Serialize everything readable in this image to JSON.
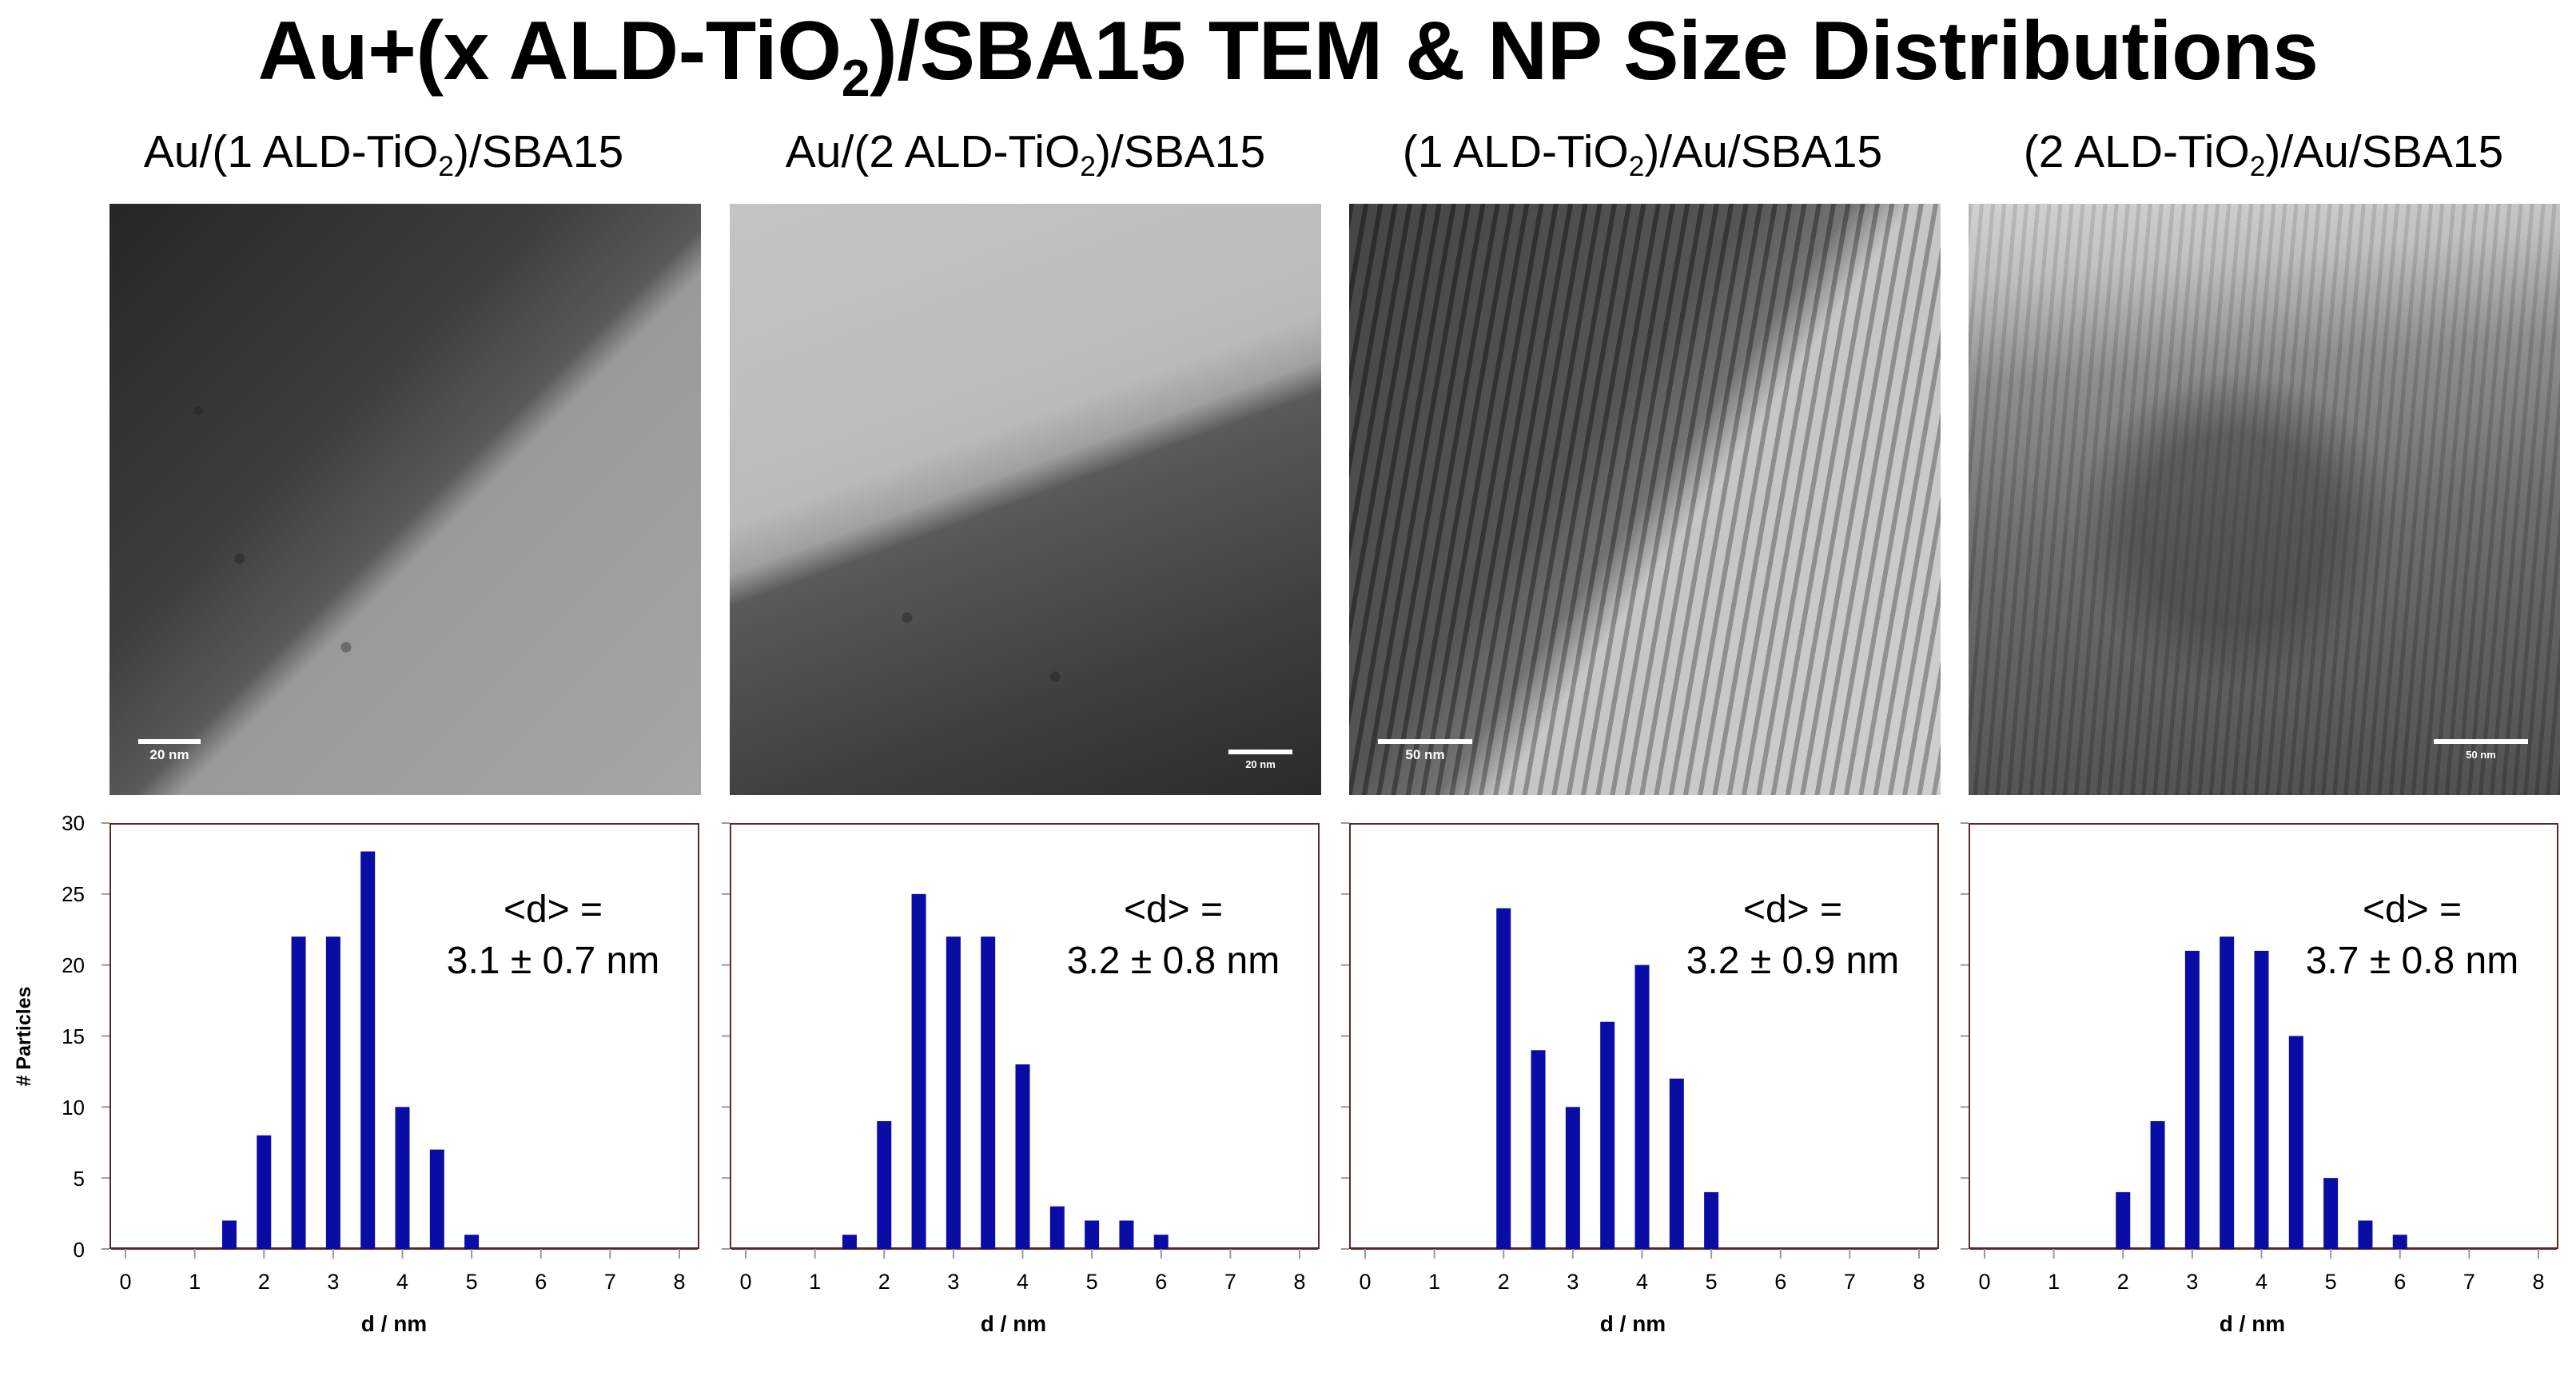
{
  "title": {
    "prefix": "Au+(x ALD-TiO",
    "sub": "2",
    "suffix": ")/SBA15 TEM & NP Size Distributions"
  },
  "panels": [
    {
      "title_pre": "Au/(1 ALD-TiO",
      "title_sub": "2",
      "title_post": ")/SBA15",
      "scale_label": "20 nm",
      "avg_line1": "<d> =",
      "avg_line2": "3.1 ± 0.7 nm"
    },
    {
      "title_pre": "Au/(2 ALD-TiO",
      "title_sub": "2",
      "title_post": ")/SBA15",
      "scale_label": "20 nm",
      "avg_line1": "<d> =",
      "avg_line2": "3.2 ± 0.8 nm"
    },
    {
      "title_pre": "(1 ALD-TiO",
      "title_sub": "2",
      "title_post": ")/Au/SBA15",
      "scale_label": "50 nm",
      "avg_line1": "<d> =",
      "avg_line2": "3.2 ± 0.9 nm"
    },
    {
      "title_pre": "(2 ALD-TiO",
      "title_sub": "2",
      "title_post": ")/Au/SBA15",
      "scale_label": "50 nm",
      "avg_line1": "<d> =",
      "avg_line2": "3.7 ± 0.8 nm"
    }
  ],
  "colors": {
    "bar": "#0a0ca6",
    "frame": "#5a2a22",
    "axis": "#999999"
  },
  "chart_data": [
    {
      "type": "bar",
      "title": "Au/(1 ALD-TiO2)/SBA15",
      "xlabel": "d / nm",
      "ylabel": "# Particles",
      "xlim": [
        0,
        8
      ],
      "ylim": [
        0,
        30
      ],
      "xticks": [
        "0",
        "1",
        "2",
        "3",
        "4",
        "5",
        "6",
        "7",
        "8"
      ],
      "yticks": [
        "0",
        "5",
        "10",
        "15",
        "20",
        "25",
        "30"
      ],
      "x": [
        1.5,
        2.0,
        2.5,
        3.0,
        3.5,
        4.0,
        4.5,
        5.0
      ],
      "values": [
        2,
        8,
        22,
        22,
        28,
        10,
        7,
        1
      ]
    },
    {
      "type": "bar",
      "title": "Au/(2 ALD-TiO2)/SBA15",
      "xlabel": "d / nm",
      "ylabel": "# Particles",
      "xlim": [
        0,
        8
      ],
      "ylim": [
        0,
        30
      ],
      "xticks": [
        "0",
        "1",
        "2",
        "3",
        "4",
        "5",
        "6",
        "7",
        "8"
      ],
      "yticks": [
        "0",
        "5",
        "10",
        "15",
        "20",
        "25",
        "30"
      ],
      "x": [
        1.5,
        2.0,
        2.5,
        3.0,
        3.5,
        4.0,
        4.5,
        5.0,
        5.5,
        6.0
      ],
      "values": [
        1,
        9,
        25,
        22,
        22,
        13,
        3,
        2,
        2,
        1
      ]
    },
    {
      "type": "bar",
      "title": "(1 ALD-TiO2)/Au/SBA15",
      "xlabel": "d / nm",
      "ylabel": "# Particles",
      "xlim": [
        0,
        8
      ],
      "ylim": [
        0,
        30
      ],
      "xticks": [
        "0",
        "1",
        "2",
        "3",
        "4",
        "5",
        "6",
        "7",
        "8"
      ],
      "yticks": [
        "0",
        "5",
        "10",
        "15",
        "20",
        "25",
        "30"
      ],
      "x": [
        2.0,
        2.5,
        3.0,
        3.5,
        4.0,
        4.5,
        5.0
      ],
      "values": [
        24,
        14,
        10,
        16,
        20,
        12,
        4
      ]
    },
    {
      "type": "bar",
      "title": "(2 ALD-TiO2)/Au/SBA15",
      "xlabel": "d / nm",
      "ylabel": "# Particles",
      "xlim": [
        0,
        8
      ],
      "ylim": [
        0,
        30
      ],
      "xticks": [
        "0",
        "1",
        "2",
        "3",
        "4",
        "5",
        "6",
        "7",
        "8"
      ],
      "yticks": [
        "0",
        "5",
        "10",
        "15",
        "20",
        "25",
        "30"
      ],
      "x": [
        2.0,
        2.5,
        3.0,
        3.5,
        4.0,
        4.5,
        5.0,
        5.5,
        6.0
      ],
      "values": [
        4,
        9,
        21,
        22,
        21,
        15,
        5,
        2,
        1
      ]
    }
  ]
}
